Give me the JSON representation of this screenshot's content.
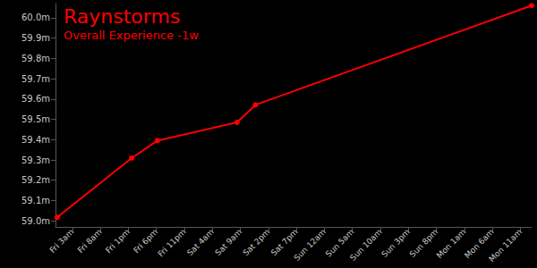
{
  "chart_data": {
    "type": "line",
    "title": "Raynstorms",
    "subtitle": "Overall Experience -1w",
    "color": "#ff0000",
    "marker": "circle",
    "grid": false,
    "x": [
      0.3,
      13.6,
      18.2,
      32.4,
      35.7,
      85
    ],
    "values": [
      59.017,
      59.309,
      59.395,
      59.485,
      59.571,
      60.06
    ],
    "xlim": [
      0,
      85
    ],
    "xticks": [
      {
        "value": 3,
        "label": "Fri 3am"
      },
      {
        "value": 8,
        "label": "Fri 8am"
      },
      {
        "value": 13,
        "label": "Fri 1pm"
      },
      {
        "value": 18,
        "label": "Fri 6pm"
      },
      {
        "value": 23,
        "label": "Fri 11pm"
      },
      {
        "value": 28,
        "label": "Sat 4am"
      },
      {
        "value": 33,
        "label": "Sat 9am"
      },
      {
        "value": 38,
        "label": "Sat 2pm"
      },
      {
        "value": 43,
        "label": "Sat 7pm"
      },
      {
        "value": 48,
        "label": "Sun 12am"
      },
      {
        "value": 53,
        "label": "Sun 5am"
      },
      {
        "value": 58,
        "label": "Sun 10am"
      },
      {
        "value": 63,
        "label": "Sun 3pm"
      },
      {
        "value": 68,
        "label": "Sun 8pm"
      },
      {
        "value": 73,
        "label": "Mon 1am"
      },
      {
        "value": 78,
        "label": "Mon 6am"
      },
      {
        "value": 83,
        "label": "Mon 11am"
      }
    ],
    "ylim": [
      58.97,
      60.07
    ],
    "yticks": [
      {
        "value": 59.0,
        "label": "59.0m"
      },
      {
        "value": 59.1,
        "label": "59.1m"
      },
      {
        "value": 59.2,
        "label": "59.2m"
      },
      {
        "value": 59.3,
        "label": "59.3m"
      },
      {
        "value": 59.4,
        "label": "59.4m"
      },
      {
        "value": 59.5,
        "label": "59.5m"
      },
      {
        "value": 59.6,
        "label": "59.6m"
      },
      {
        "value": 59.7,
        "label": "59.7m"
      },
      {
        "value": 59.8,
        "label": "59.8m"
      },
      {
        "value": 59.9,
        "label": "59.9m"
      },
      {
        "value": 60.0,
        "label": "60.0m"
      }
    ]
  }
}
